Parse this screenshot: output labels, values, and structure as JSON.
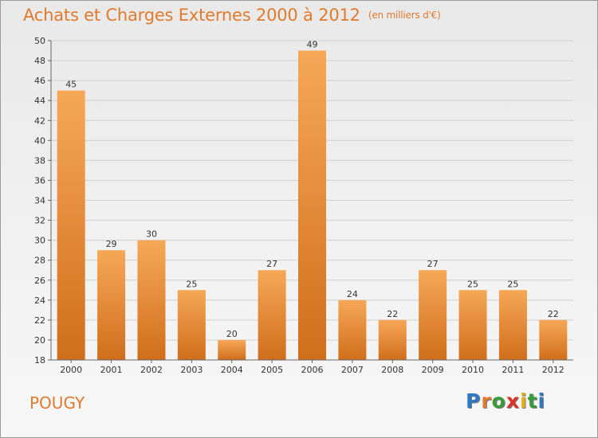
{
  "title": "Achats et Charges Externes 2000 à 2012",
  "subtitle": "(en milliers d'€)",
  "commune": "POUGY",
  "logo": {
    "letters": [
      "P",
      "r",
      "o",
      "x",
      "i",
      "t",
      "i"
    ],
    "colors": [
      "#2f78c4",
      "#e07a2e",
      "#3a9a3a",
      "#d9332b",
      "#e0b11a",
      "#3a9a3a",
      "#2f78c4"
    ]
  },
  "chart_data": {
    "type": "bar",
    "title": "Achats et Charges Externes 2000 à 2012",
    "subtitle": "(en milliers d'€)",
    "categories": [
      "2000",
      "2001",
      "2002",
      "2003",
      "2004",
      "2005",
      "2006",
      "2007",
      "2008",
      "2009",
      "2010",
      "2011",
      "2012"
    ],
    "values": [
      45,
      29,
      30,
      25,
      20,
      27,
      49,
      24,
      22,
      27,
      25,
      25,
      22
    ],
    "ylim": [
      18,
      50
    ],
    "yticks": [
      18,
      20,
      22,
      24,
      26,
      28,
      30,
      32,
      34,
      36,
      38,
      40,
      42,
      44,
      46,
      48,
      50
    ],
    "grid": true,
    "bar_color": "#f0963f"
  }
}
